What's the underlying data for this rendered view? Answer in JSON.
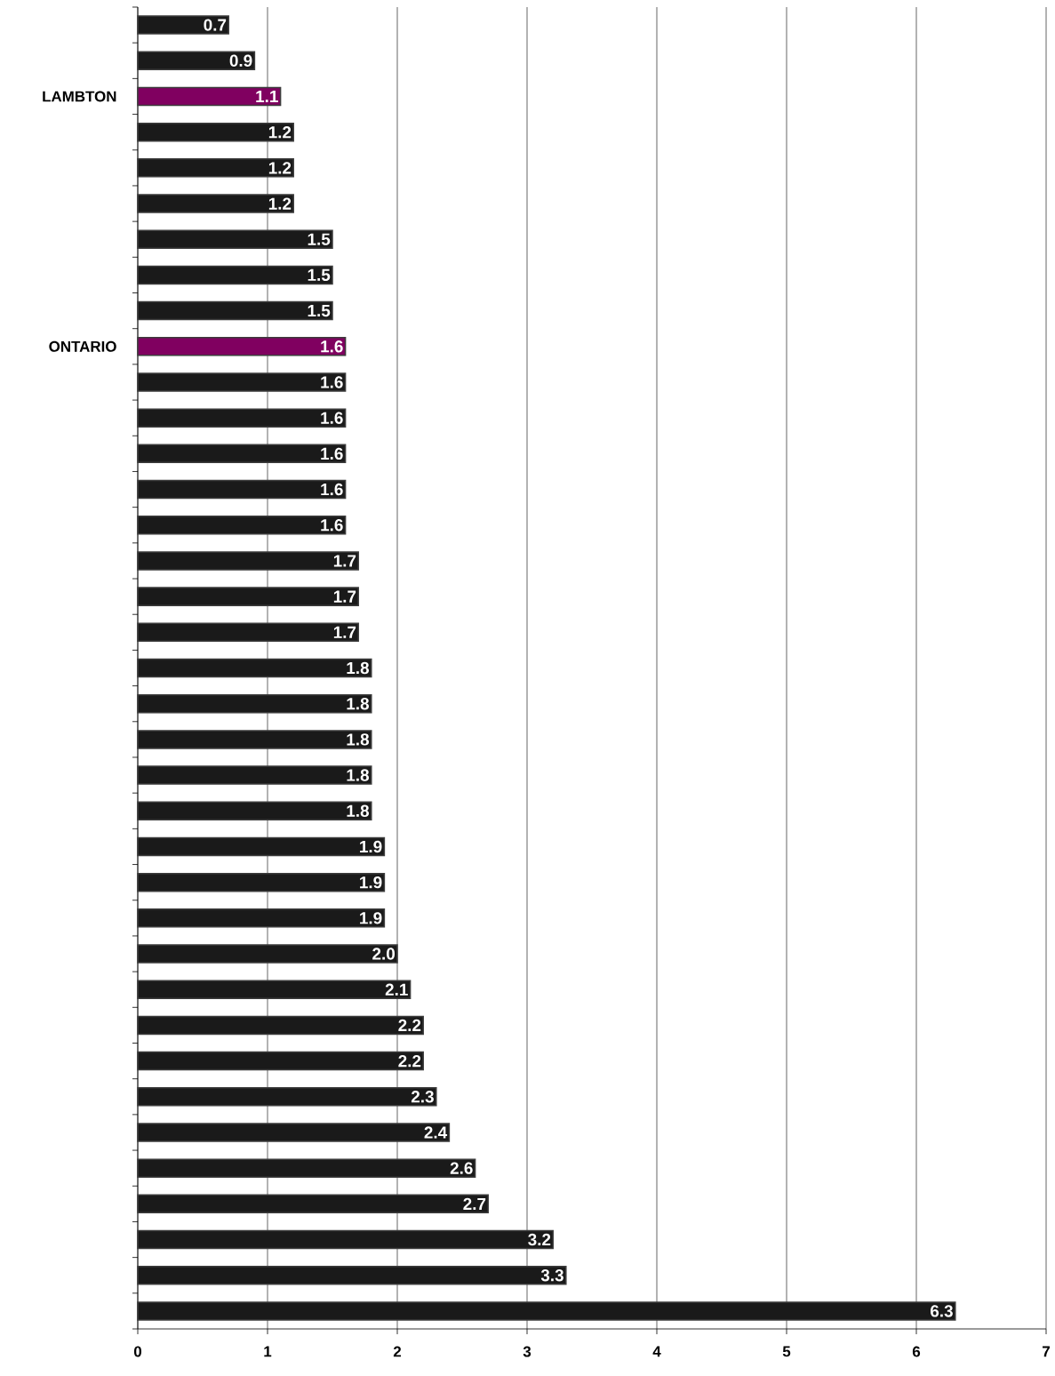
{
  "chart_data": {
    "type": "bar",
    "orientation": "horizontal",
    "categories": [
      null,
      null,
      "LAMBTON",
      null,
      null,
      null,
      null,
      null,
      null,
      "ONTARIO",
      null,
      null,
      null,
      null,
      null,
      null,
      null,
      null,
      null,
      null,
      null,
      null,
      null,
      null,
      null,
      null,
      null,
      null,
      null,
      null,
      null,
      null,
      null,
      null,
      null,
      null,
      null
    ],
    "values": [
      0.7,
      0.9,
      1.1,
      1.2,
      1.2,
      1.2,
      1.5,
      1.5,
      1.5,
      1.6,
      1.6,
      1.6,
      1.6,
      1.6,
      1.6,
      1.7,
      1.7,
      1.7,
      1.8,
      1.8,
      1.8,
      1.8,
      1.8,
      1.9,
      1.9,
      1.9,
      2.0,
      2.1,
      2.2,
      2.2,
      2.3,
      2.4,
      2.6,
      2.7,
      3.2,
      3.3,
      6.3
    ],
    "value_labels": [
      "0.7",
      "0.9",
      "1.1",
      "1.2",
      "1.2",
      "1.2",
      "1.5",
      "1.5",
      "1.5",
      "1.6",
      "1.6",
      "1.6",
      "1.6",
      "1.6",
      "1.6",
      "1.7",
      "1.7",
      "1.7",
      "1.8",
      "1.8",
      "1.8",
      "1.8",
      "1.8",
      "1.9",
      "1.9",
      "1.9",
      "2.0",
      "2.1",
      "2.2",
      "2.2",
      "2.3",
      "2.4",
      "2.6",
      "2.7",
      "3.2",
      "3.3",
      "6.3"
    ],
    "colors": [
      "#1a1a1a",
      "#1a1a1a",
      "#800060",
      "#1a1a1a",
      "#1a1a1a",
      "#1a1a1a",
      "#1a1a1a",
      "#1a1a1a",
      "#1a1a1a",
      "#800060",
      "#1a1a1a",
      "#1a1a1a",
      "#1a1a1a",
      "#1a1a1a",
      "#1a1a1a",
      "#1a1a1a",
      "#1a1a1a",
      "#1a1a1a",
      "#1a1a1a",
      "#1a1a1a",
      "#1a1a1a",
      "#1a1a1a",
      "#1a1a1a",
      "#1a1a1a",
      "#1a1a1a",
      "#1a1a1a",
      "#1a1a1a",
      "#1a1a1a",
      "#1a1a1a",
      "#1a1a1a",
      "#1a1a1a",
      "#1a1a1a",
      "#1a1a1a",
      "#1a1a1a",
      "#1a1a1a",
      "#1a1a1a",
      "#1a1a1a"
    ],
    "xlim": [
      0,
      7
    ],
    "xticks": [
      0,
      1,
      2,
      3,
      4,
      5,
      6,
      7
    ],
    "grid": "x"
  }
}
